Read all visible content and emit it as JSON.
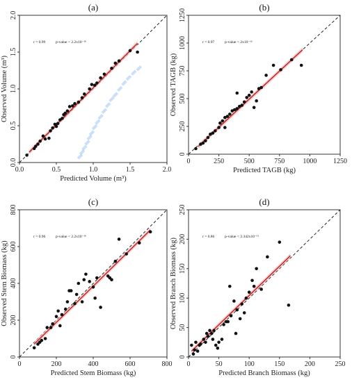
{
  "chart_data": [
    {
      "type": "scatter",
      "panel_label": "(a)",
      "xlabel": "Predicted Volume (m³)",
      "ylabel": "Observed Volume (m³)",
      "xlim": [
        0,
        2.0
      ],
      "ylim": [
        0,
        2.0
      ],
      "xticks": [
        "0.0",
        "0.5",
        "1.0",
        "1.5",
        "2.0"
      ],
      "yticks": [
        "0.0",
        "0.5",
        "1.0",
        "1.5",
        "2.0"
      ],
      "tick_values": [
        0,
        0.5,
        1.0,
        1.5,
        2.0
      ],
      "stat_r": "r = 0.99",
      "stat_p": "p-value < 2.2x10⁻¹⁶",
      "fit": [
        [
          0.13,
          0.14
        ],
        [
          1.6,
          1.62
        ]
      ],
      "points": [
        [
          0.1,
          0.1
        ],
        [
          0.2,
          0.19
        ],
        [
          0.22,
          0.22
        ],
        [
          0.25,
          0.25
        ],
        [
          0.28,
          0.29
        ],
        [
          0.32,
          0.36
        ],
        [
          0.35,
          0.32
        ],
        [
          0.4,
          0.33
        ],
        [
          0.42,
          0.43
        ],
        [
          0.45,
          0.47
        ],
        [
          0.48,
          0.52
        ],
        [
          0.5,
          0.49
        ],
        [
          0.52,
          0.53
        ],
        [
          0.55,
          0.58
        ],
        [
          0.58,
          0.6
        ],
        [
          0.6,
          0.65
        ],
        [
          0.62,
          0.67
        ],
        [
          0.65,
          0.7
        ],
        [
          0.68,
          0.76
        ],
        [
          0.72,
          0.77
        ],
        [
          0.75,
          0.8
        ],
        [
          0.8,
          0.82
        ],
        [
          0.85,
          0.88
        ],
        [
          0.88,
          0.93
        ],
        [
          0.95,
          1.0
        ],
        [
          0.98,
          1.06
        ],
        [
          1.02,
          1.05
        ],
        [
          1.05,
          1.08
        ],
        [
          1.1,
          1.15
        ],
        [
          1.15,
          1.2
        ],
        [
          1.25,
          1.28
        ],
        [
          1.3,
          1.35
        ],
        [
          1.35,
          1.38
        ],
        [
          1.5,
          1.52
        ],
        [
          1.6,
          1.5
        ]
      ],
      "ghost_points": [
        [
          1.62,
          1.28
        ],
        [
          1.55,
          1.22
        ],
        [
          1.48,
          1.15
        ],
        [
          1.42,
          1.08
        ],
        [
          1.36,
          1.0
        ],
        [
          1.3,
          0.92
        ],
        [
          1.25,
          0.86
        ],
        [
          1.2,
          0.78
        ],
        [
          1.15,
          0.7
        ],
        [
          1.1,
          0.62
        ],
        [
          1.06,
          0.55
        ],
        [
          1.02,
          0.48
        ],
        [
          0.98,
          0.4
        ],
        [
          0.95,
          0.34
        ],
        [
          0.92,
          0.27
        ],
        [
          0.88,
          0.2
        ],
        [
          0.85,
          0.14
        ],
        [
          0.82,
          0.08
        ]
      ]
    },
    {
      "type": "scatter",
      "panel_label": "(b)",
      "xlabel": "Predicted TAGB (kg)",
      "ylabel": "Observed TAGB (kg)",
      "xlim": [
        0,
        1250
      ],
      "ylim": [
        0,
        1250
      ],
      "xticks": [
        "0",
        "250",
        "500",
        "750",
        "1000",
        "1250"
      ],
      "yticks": [
        "0",
        "250",
        "500",
        "750",
        "1000",
        "1250"
      ],
      "tick_values": [
        0,
        250,
        500,
        750,
        1000,
        1250
      ],
      "stat_r": "r = 0.97",
      "stat_p": "p-value < 2x10⁻¹⁶",
      "fit": [
        [
          80,
          70
        ],
        [
          940,
          940
        ]
      ],
      "points": [
        [
          60,
          50
        ],
        [
          100,
          90
        ],
        [
          120,
          100
        ],
        [
          140,
          120
        ],
        [
          160,
          150
        ],
        [
          180,
          180
        ],
        [
          200,
          190
        ],
        [
          220,
          210
        ],
        [
          250,
          240
        ],
        [
          260,
          280
        ],
        [
          280,
          300
        ],
        [
          300,
          330
        ],
        [
          320,
          340
        ],
        [
          340,
          360
        ],
        [
          360,
          390
        ],
        [
          380,
          400
        ],
        [
          400,
          410
        ],
        [
          420,
          430
        ],
        [
          440,
          440
        ],
        [
          460,
          470
        ],
        [
          480,
          510
        ],
        [
          500,
          530
        ],
        [
          520,
          560
        ],
        [
          540,
          420
        ],
        [
          560,
          480
        ],
        [
          580,
          590
        ],
        [
          600,
          600
        ],
        [
          640,
          710
        ],
        [
          700,
          800
        ],
        [
          760,
          760
        ],
        [
          850,
          850
        ],
        [
          930,
          800
        ],
        [
          400,
          550
        ],
        [
          300,
          240
        ]
      ]
    },
    {
      "type": "scatter",
      "panel_label": "(c)",
      "xlabel": "Predicted Stem Biomass (kg)",
      "ylabel": "Observed Stem Biomass (kg)",
      "xlim": [
        0,
        800
      ],
      "ylim": [
        0,
        800
      ],
      "xticks": [
        "0",
        "200",
        "400",
        "600",
        "800"
      ],
      "yticks": [
        "0",
        "200",
        "400",
        "600",
        "800"
      ],
      "tick_values": [
        0,
        200,
        400,
        600,
        800
      ],
      "stat_r": "r = 0.96",
      "stat_p": "p-value < 2.2x10⁻¹⁶",
      "fit": [
        [
          80,
          70
        ],
        [
          710,
          690
        ]
      ],
      "points": [
        [
          80,
          50
        ],
        [
          100,
          70
        ],
        [
          110,
          80
        ],
        [
          120,
          90
        ],
        [
          140,
          100
        ],
        [
          150,
          160
        ],
        [
          170,
          160
        ],
        [
          180,
          180
        ],
        [
          200,
          220
        ],
        [
          210,
          250
        ],
        [
          220,
          170
        ],
        [
          230,
          230
        ],
        [
          250,
          260
        ],
        [
          260,
          300
        ],
        [
          270,
          360
        ],
        [
          280,
          360
        ],
        [
          300,
          290
        ],
        [
          310,
          340
        ],
        [
          320,
          400
        ],
        [
          340,
          300
        ],
        [
          350,
          420
        ],
        [
          360,
          450
        ],
        [
          380,
          410
        ],
        [
          400,
          380
        ],
        [
          410,
          320
        ],
        [
          420,
          430
        ],
        [
          440,
          270
        ],
        [
          480,
          440
        ],
        [
          490,
          430
        ],
        [
          500,
          420
        ],
        [
          520,
          520
        ],
        [
          540,
          640
        ],
        [
          580,
          560
        ],
        [
          650,
          620
        ],
        [
          710,
          680
        ]
      ]
    },
    {
      "type": "scatter",
      "panel_label": "(d)",
      "xlabel": "Predicted Branch Biomass (kg)",
      "ylabel": "Observed Branch Biomass (kg)",
      "xlim": [
        0,
        250
      ],
      "ylim": [
        0,
        250
      ],
      "xticks": [
        "0",
        "50",
        "100",
        "150",
        "200",
        "250"
      ],
      "yticks": [
        "0",
        "50",
        "100",
        "150",
        "200",
        "250"
      ],
      "tick_values": [
        0,
        50,
        100,
        150,
        200,
        250
      ],
      "stat_r": "r = 0.86",
      "stat_p": "p-value < 2.342x10⁻¹¹",
      "fit": [
        [
          5,
          10
        ],
        [
          168,
          172
        ]
      ],
      "points": [
        [
          5,
          20
        ],
        [
          8,
          5
        ],
        [
          10,
          12
        ],
        [
          12,
          25
        ],
        [
          15,
          10
        ],
        [
          18,
          20
        ],
        [
          20,
          22
        ],
        [
          25,
          30
        ],
        [
          28,
          25
        ],
        [
          30,
          40
        ],
        [
          32,
          35
        ],
        [
          35,
          45
        ],
        [
          38,
          40
        ],
        [
          40,
          30
        ],
        [
          42,
          45
        ],
        [
          45,
          20
        ],
        [
          48,
          15
        ],
        [
          50,
          25
        ],
        [
          55,
          30
        ],
        [
          58,
          55
        ],
        [
          62,
          60
        ],
        [
          65,
          60
        ],
        [
          68,
          120
        ],
        [
          70,
          70
        ],
        [
          75,
          95
        ],
        [
          78,
          40
        ],
        [
          80,
          80
        ],
        [
          85,
          65
        ],
        [
          88,
          90
        ],
        [
          92,
          75
        ],
        [
          95,
          100
        ],
        [
          100,
          110
        ],
        [
          105,
          130
        ],
        [
          108,
          120
        ],
        [
          112,
          150
        ],
        [
          120,
          115
        ],
        [
          130,
          170
        ],
        [
          150,
          195
        ],
        [
          165,
          88
        ]
      ]
    }
  ]
}
